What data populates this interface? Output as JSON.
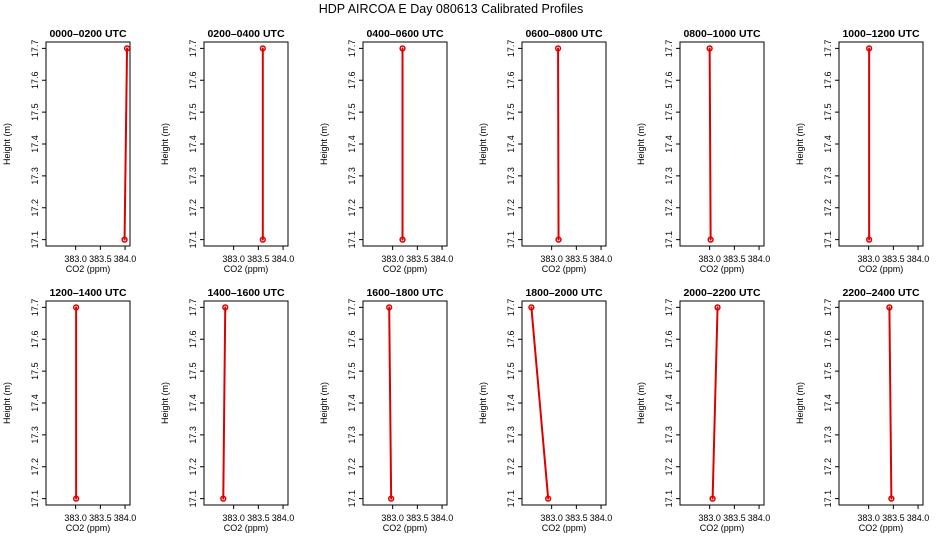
{
  "title": "HDP AIRCOA E  Day 080613  Calibrated Profiles",
  "colors": {
    "line": "#dd0000",
    "point": "#dd0000",
    "frame": "#000000"
  },
  "chart_data": {
    "type": "line",
    "xlabel": "CO2 (ppm)",
    "ylabel": "Height (m)",
    "xlim": [
      382.4,
      384.1
    ],
    "ylim": [
      17.08,
      17.72
    ],
    "x_ticks": [
      383.0,
      383.5,
      384.0
    ],
    "x_tick_labels": [
      "383.0",
      "383.5",
      "384.0"
    ],
    "y_ticks": [
      17.1,
      17.2,
      17.3,
      17.4,
      17.5,
      17.6,
      17.7
    ],
    "y_tick_labels": [
      "17.1",
      "17.2",
      "17.3",
      "17.4",
      "17.5",
      "17.6",
      "17.7"
    ],
    "grid": false,
    "panels": [
      {
        "title": "0000–0200 UTC",
        "points": [
          {
            "x": 383.99,
            "y": 17.1
          },
          {
            "x": 384.04,
            "y": 17.7
          }
        ]
      },
      {
        "title": "0200–0400 UTC",
        "points": [
          {
            "x": 383.59,
            "y": 17.1
          },
          {
            "x": 383.59,
            "y": 17.7
          }
        ]
      },
      {
        "title": "0400–0600 UTC",
        "points": [
          {
            "x": 383.2,
            "y": 17.1
          },
          {
            "x": 383.2,
            "y": 17.7
          }
        ]
      },
      {
        "title": "0600–0800 UTC",
        "points": [
          {
            "x": 383.14,
            "y": 17.1
          },
          {
            "x": 383.13,
            "y": 17.7
          }
        ]
      },
      {
        "title": "0800–1000 UTC",
        "points": [
          {
            "x": 383.02,
            "y": 17.1
          },
          {
            "x": 383.0,
            "y": 17.7
          }
        ]
      },
      {
        "title": "1000–1200 UTC",
        "points": [
          {
            "x": 383.01,
            "y": 17.1
          },
          {
            "x": 383.01,
            "y": 17.7
          }
        ]
      },
      {
        "title": "1200–1400 UTC",
        "points": [
          {
            "x": 383.01,
            "y": 17.1
          },
          {
            "x": 383.01,
            "y": 17.7
          }
        ]
      },
      {
        "title": "1400–1600 UTC",
        "points": [
          {
            "x": 382.79,
            "y": 17.1
          },
          {
            "x": 382.83,
            "y": 17.7
          }
        ]
      },
      {
        "title": "1600–1800 UTC",
        "points": [
          {
            "x": 382.97,
            "y": 17.1
          },
          {
            "x": 382.93,
            "y": 17.7
          }
        ]
      },
      {
        "title": "1800–2000 UTC",
        "points": [
          {
            "x": 382.93,
            "y": 17.1
          },
          {
            "x": 382.59,
            "y": 17.7
          }
        ]
      },
      {
        "title": "2000–2200 UTC",
        "points": [
          {
            "x": 383.06,
            "y": 17.1
          },
          {
            "x": 383.16,
            "y": 17.7
          }
        ]
      },
      {
        "title": "2200–2400 UTC",
        "points": [
          {
            "x": 383.46,
            "y": 17.1
          },
          {
            "x": 383.42,
            "y": 17.7
          }
        ]
      }
    ]
  }
}
